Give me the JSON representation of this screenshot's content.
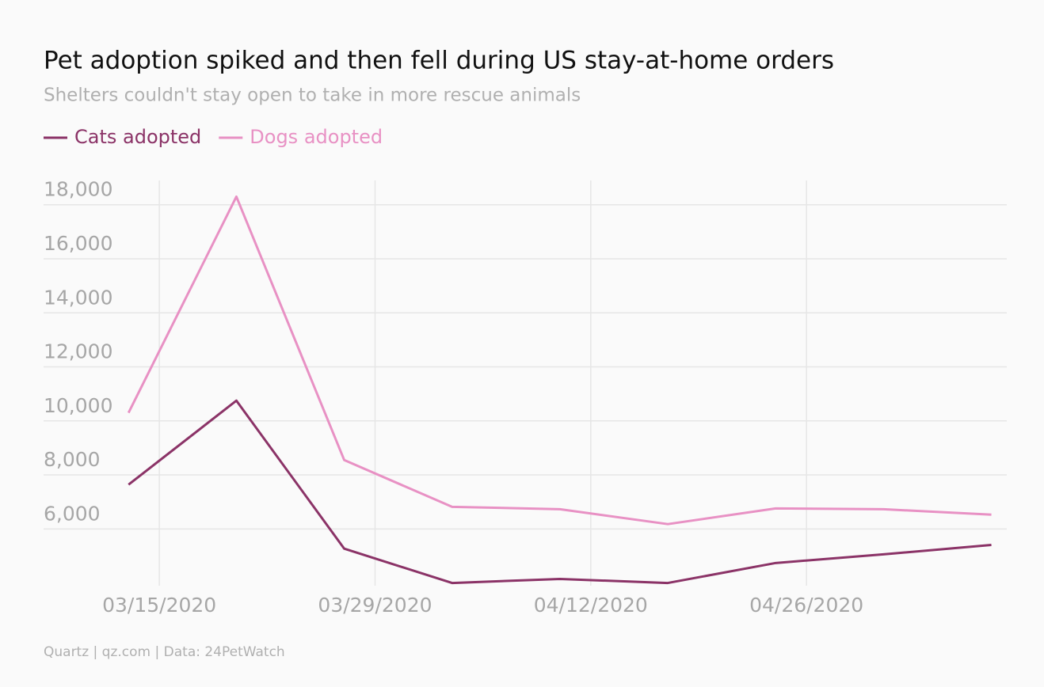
{
  "chart_data": {
    "type": "line",
    "title": "Pet adoption spiked and then fell during US stay-at-home orders",
    "subtitle": "Shelters couldn't stay open to take in more rescue animals",
    "source": "Quartz | qz.com | Data: 24PetWatch",
    "x": [
      "2020-03-13",
      "2020-03-20",
      "2020-03-27",
      "2020-04-03",
      "2020-04-10",
      "2020-04-17",
      "2020-04-24",
      "2020-05-01",
      "2020-05-08"
    ],
    "series": [
      {
        "name": "Cats adopted",
        "color": "#8b3367",
        "values": [
          7640,
          10750,
          5270,
          4000,
          4150,
          4000,
          4740,
          5060,
          5410
        ]
      },
      {
        "name": "Dogs adopted",
        "color": "#e891c4",
        "values": [
          10300,
          18300,
          8550,
          6820,
          6730,
          6180,
          6760,
          6730,
          6530
        ]
      }
    ],
    "xlim": [
      "2020-03-08",
      "2020-05-09"
    ],
    "xticks": [
      {
        "value": "2020-03-15",
        "label": "03/15/2020"
      },
      {
        "value": "2020-03-29",
        "label": "03/29/2020"
      },
      {
        "value": "2020-04-12",
        "label": "04/12/2020"
      },
      {
        "value": "2020-04-26",
        "label": "04/26/2020"
      }
    ],
    "ylim": [
      3900,
      18900
    ],
    "yticks": [
      {
        "value": 6000,
        "label": "6,000"
      },
      {
        "value": 8000,
        "label": "8,000"
      },
      {
        "value": 10000,
        "label": "10,000"
      },
      {
        "value": 12000,
        "label": "12,000"
      },
      {
        "value": 14000,
        "label": "14,000"
      },
      {
        "value": 16000,
        "label": "16,000"
      },
      {
        "value": 18000,
        "label": "18,000"
      }
    ],
    "grid": true
  }
}
